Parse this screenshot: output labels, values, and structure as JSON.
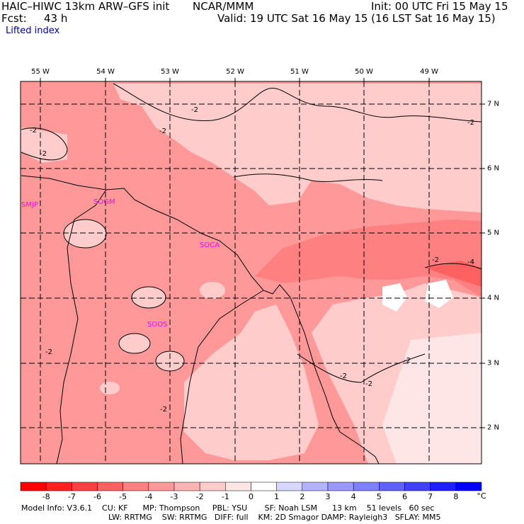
{
  "header": {
    "title_left": "HAIC–HIWC 13km ARW–GFS init",
    "title_center": "NCAR/MMM",
    "init": "Init: 00 UTC Fri 15 May 15",
    "fcst_label": "Fcst:",
    "fcst_value": "43 h",
    "valid": "Valid: 19 UTC Sat 16 May 15 (16 LST Sat 16 May 15)",
    "field": "Lifted index"
  },
  "axes": {
    "lon_labels": [
      "55 W",
      "54 W",
      "53 W",
      "52 W",
      "51 W",
      "50 W",
      "49 W"
    ],
    "lat_labels": [
      "7 N",
      "6 N",
      "5 N",
      "4 N",
      "3 N",
      "2 N"
    ]
  },
  "stations": [
    "SMJP",
    "SOGM",
    "SOCA",
    "SOOS"
  ],
  "contour_labels": [
    "-2",
    "-2",
    "-2",
    "-2",
    "-2",
    "-2",
    "-2",
    "-2",
    "-2",
    "-2",
    "-2",
    "-4"
  ],
  "colorbar": {
    "labels": [
      "-8",
      "-7",
      "-6",
      "-5",
      "-4",
      "-3",
      "-2",
      "-1",
      "0",
      "1",
      "2",
      "3",
      "4",
      "5",
      "6",
      "7",
      "8"
    ],
    "unit": "°C",
    "colors": [
      "#ff0000",
      "#ff2020",
      "#ff4040",
      "#ff6060",
      "#ff8080",
      "#ff9999",
      "#ffb3b3",
      "#ffcccc",
      "#ffe6e6",
      "#ffffff",
      "#d6d6ff",
      "#b3b3ff",
      "#9999ff",
      "#8080ff",
      "#6060ff",
      "#4040ff",
      "#2020ff",
      "#0000ff"
    ]
  },
  "model_info": {
    "line1": "Model Info: V3.6.1    CU: KF      MP: Thompson     PBL: YSU       SF: Noah LSM      13 km    51 levels   60 sec",
    "line2": "LW: RRTMG    SW: RRTMG   DIFF: full    KM: 2D Smagor DAMP: Rayleigh3   SFLAY: MM5"
  }
}
